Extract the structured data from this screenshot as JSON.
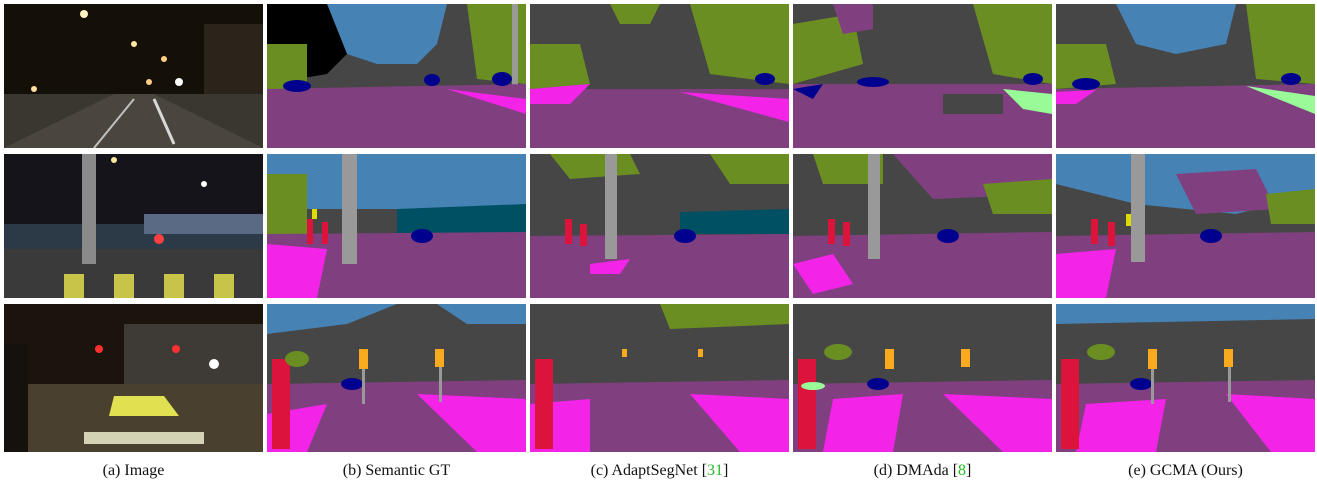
{
  "figure": {
    "columns": [
      {
        "prefix": "(a) Image",
        "cite": "",
        "suffix": ""
      },
      {
        "prefix": "(b) Semantic GT",
        "cite": "",
        "suffix": ""
      },
      {
        "prefix": "(c) AdaptSegNet [",
        "cite": "31",
        "suffix": "]"
      },
      {
        "prefix": "(d) DMAda [",
        "cite": "8",
        "suffix": "]"
      },
      {
        "prefix": "(e) GCMA (Ours)",
        "cite": "",
        "suffix": ""
      }
    ]
  },
  "palette": {
    "road": "#804080",
    "sidewalk": "#f423e8",
    "building": "#464646",
    "vegetation": "#6b8e23",
    "sky": "#4682b4",
    "car": "#00008e",
    "person": "#dc143c",
    "pole": "#999999",
    "traffic_light": "#faaa1e",
    "traffic_sign": "#dcdc00",
    "train": "#005064",
    "terrain": "#98fb98",
    "void": "#000000",
    "cite_color": "#22bb22"
  }
}
